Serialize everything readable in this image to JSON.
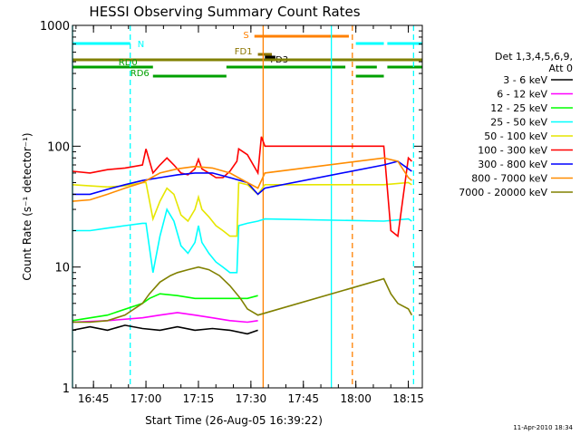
{
  "chart_data": {
    "type": "line",
    "title": "HESSI Observing Summary Count Rates",
    "xlabel": "Start Time (26-Aug-05 16:39:22)",
    "ylabel": "Count Rate (s⁻¹ detector⁻¹)",
    "yscale": "log",
    "ylim": [
      1,
      1000
    ],
    "xlim_minutes_after_1639": [
      0,
      100
    ],
    "y_ticks": [
      {
        "value": 1,
        "label": "1"
      },
      {
        "value": 10,
        "label": "10"
      },
      {
        "value": 100,
        "label": "100"
      },
      {
        "value": 1000,
        "label": "1000"
      }
    ],
    "x_ticks": [
      {
        "t": 6,
        "label": "16:45"
      },
      {
        "t": 21,
        "label": "17:00"
      },
      {
        "t": 36,
        "label": "17:15"
      },
      {
        "t": 51,
        "label": "17:30"
      },
      {
        "t": 66,
        "label": "17:45"
      },
      {
        "t": 81,
        "label": "18:00"
      },
      {
        "t": 96,
        "label": "18:15"
      }
    ],
    "legend_header": [
      "Det 1,3,4,5,6,9,",
      "Att 0"
    ],
    "legend_placement": "right",
    "series": [
      {
        "name": "3 - 6 keV",
        "color": "#000000",
        "points": [
          [
            0,
            3
          ],
          [
            5,
            3.2
          ],
          [
            10,
            3
          ],
          [
            15,
            3.3
          ],
          [
            20,
            3.1
          ],
          [
            25,
            3
          ],
          [
            30,
            3.2
          ],
          [
            35,
            3
          ],
          [
            40,
            3.1
          ],
          [
            45,
            3
          ],
          [
            50,
            2.8
          ],
          [
            53,
            3
          ]
        ]
      },
      {
        "name": "6 - 12 keV",
        "color": "#ff00ff",
        "points": [
          [
            0,
            3.5
          ],
          [
            10,
            3.6
          ],
          [
            20,
            3.8
          ],
          [
            25,
            4
          ],
          [
            30,
            4.2
          ],
          [
            35,
            4
          ],
          [
            40,
            3.8
          ],
          [
            45,
            3.6
          ],
          [
            50,
            3.5
          ],
          [
            53,
            3.6
          ]
        ]
      },
      {
        "name": "12 - 25 keV",
        "color": "#00ff00",
        "points": [
          [
            0,
            3.6
          ],
          [
            10,
            4
          ],
          [
            20,
            5
          ],
          [
            22,
            5.5
          ],
          [
            25,
            6
          ],
          [
            30,
            5.8
          ],
          [
            35,
            5.5
          ],
          [
            40,
            5.5
          ],
          [
            45,
            5.5
          ],
          [
            50,
            5.5
          ],
          [
            53,
            5.8
          ]
        ]
      },
      {
        "name": "25 - 50 keV",
        "color": "#00ffff",
        "points": [
          [
            0,
            20
          ],
          [
            5,
            20
          ],
          [
            10,
            21
          ],
          [
            15,
            22
          ],
          [
            20,
            23
          ],
          [
            21,
            23
          ],
          [
            23,
            9
          ],
          [
            25,
            18
          ],
          [
            27,
            30
          ],
          [
            29,
            24
          ],
          [
            31,
            15
          ],
          [
            33,
            13
          ],
          [
            35,
            16
          ],
          [
            36,
            22
          ],
          [
            37,
            16
          ],
          [
            39,
            13
          ],
          [
            41,
            11
          ],
          [
            43,
            10
          ],
          [
            45,
            9
          ],
          [
            47,
            9
          ],
          [
            47.5,
            22
          ],
          [
            50,
            23
          ],
          [
            53,
            24
          ],
          [
            55,
            25
          ],
          [
            89,
            24
          ],
          [
            96,
            25
          ],
          [
            97,
            24
          ]
        ]
      },
      {
        "name": "50 - 100 keV",
        "color": "#e6e600",
        "points": [
          [
            0,
            48
          ],
          [
            5,
            47
          ],
          [
            10,
            46
          ],
          [
            15,
            47
          ],
          [
            20,
            50
          ],
          [
            21,
            50
          ],
          [
            23,
            25
          ],
          [
            25,
            35
          ],
          [
            27,
            45
          ],
          [
            29,
            40
          ],
          [
            31,
            27
          ],
          [
            33,
            24
          ],
          [
            35,
            30
          ],
          [
            36,
            38
          ],
          [
            37,
            30
          ],
          [
            39,
            26
          ],
          [
            41,
            22
          ],
          [
            43,
            20
          ],
          [
            45,
            18
          ],
          [
            47,
            18
          ],
          [
            47.5,
            50
          ],
          [
            50,
            48
          ],
          [
            53,
            40
          ],
          [
            55,
            48
          ],
          [
            89,
            48
          ],
          [
            96,
            50
          ],
          [
            97,
            48
          ]
        ]
      },
      {
        "name": "100 - 300 keV",
        "color": "#ff0000",
        "points": [
          [
            0,
            62
          ],
          [
            5,
            60
          ],
          [
            10,
            64
          ],
          [
            15,
            66
          ],
          [
            20,
            70
          ],
          [
            21,
            95
          ],
          [
            23,
            60
          ],
          [
            25,
            70
          ],
          [
            27,
            80
          ],
          [
            29,
            70
          ],
          [
            31,
            60
          ],
          [
            33,
            58
          ],
          [
            35,
            65
          ],
          [
            36,
            78
          ],
          [
            37,
            65
          ],
          [
            39,
            60
          ],
          [
            41,
            55
          ],
          [
            43,
            55
          ],
          [
            45,
            62
          ],
          [
            47,
            75
          ],
          [
            47.5,
            95
          ],
          [
            50,
            85
          ],
          [
            53,
            60
          ],
          [
            54,
            120
          ],
          [
            55,
            100
          ],
          [
            89,
            100
          ],
          [
            91,
            20
          ],
          [
            93,
            18
          ],
          [
            96,
            80
          ],
          [
            97,
            75
          ]
        ]
      },
      {
        "name": "300 - 800 keV",
        "color": "#0000ff",
        "points": [
          [
            0,
            40
          ],
          [
            5,
            40
          ],
          [
            10,
            44
          ],
          [
            15,
            48
          ],
          [
            20,
            52
          ],
          [
            25,
            55
          ],
          [
            30,
            58
          ],
          [
            35,
            60
          ],
          [
            40,
            60
          ],
          [
            45,
            55
          ],
          [
            50,
            50
          ],
          [
            53,
            40
          ],
          [
            55,
            45
          ],
          [
            89,
            70
          ],
          [
            93,
            75
          ],
          [
            96,
            65
          ],
          [
            97,
            62
          ]
        ]
      },
      {
        "name": "800 - 7000 keV",
        "color": "#ff8c00",
        "points": [
          [
            0,
            35
          ],
          [
            5,
            36
          ],
          [
            10,
            40
          ],
          [
            15,
            45
          ],
          [
            20,
            50
          ],
          [
            25,
            60
          ],
          [
            30,
            65
          ],
          [
            35,
            68
          ],
          [
            40,
            66
          ],
          [
            45,
            60
          ],
          [
            50,
            50
          ],
          [
            53,
            45
          ],
          [
            55,
            60
          ],
          [
            89,
            80
          ],
          [
            93,
            75
          ],
          [
            96,
            55
          ],
          [
            97,
            52
          ]
        ]
      },
      {
        "name": "7000 - 20000 keV",
        "color": "#808000",
        "points": [
          [
            0,
            3.5
          ],
          [
            5,
            3.5
          ],
          [
            10,
            3.6
          ],
          [
            15,
            4
          ],
          [
            20,
            5
          ],
          [
            22,
            6
          ],
          [
            25,
            7.5
          ],
          [
            28,
            8.5
          ],
          [
            30,
            9
          ],
          [
            33,
            9.5
          ],
          [
            36,
            10
          ],
          [
            39,
            9.5
          ],
          [
            42,
            8.5
          ],
          [
            45,
            7
          ],
          [
            48,
            5.5
          ],
          [
            50,
            4.5
          ],
          [
            53,
            4
          ],
          [
            89,
            8
          ],
          [
            91,
            6
          ],
          [
            93,
            5
          ],
          [
            96,
            4.5
          ],
          [
            97,
            4
          ]
        ]
      }
    ],
    "flag_bars": [
      {
        "label": "N",
        "color": "#00ffff",
        "segments": [
          [
            0,
            16.5
          ],
          [
            81,
            89
          ],
          [
            90,
            100
          ]
        ]
      },
      {
        "label": "S",
        "color": "#ff8000",
        "segments": [
          [
            52,
            79
          ]
        ]
      },
      {
        "label": "FD1",
        "color": "#8b7500",
        "segments": [
          [
            53,
            57
          ]
        ]
      },
      {
        "label": "FD3",
        "color": "#000000",
        "segments": [
          [
            55,
            58
          ]
        ]
      },
      {
        "label": "",
        "color": "#808000",
        "segments": [
          [
            0,
            100
          ]
        ]
      },
      {
        "label": "RD0",
        "color": "#00a000",
        "segments": [
          [
            0,
            23
          ],
          [
            44,
            78
          ],
          [
            81,
            87
          ],
          [
            90,
            100
          ]
        ]
      },
      {
        "label": "RD6",
        "color": "#00a000",
        "segments": [
          [
            23,
            44
          ],
          [
            81,
            89
          ]
        ]
      }
    ],
    "vertical_markers": [
      {
        "t": 0,
        "color": "#00ffff",
        "dashed": false
      },
      {
        "t": 16.5,
        "color": "#00ffff",
        "dashed": true
      },
      {
        "t": 54.5,
        "color": "#ff8000",
        "dashed": false
      },
      {
        "t": 74,
        "color": "#00ffff",
        "dashed": false
      },
      {
        "t": 80,
        "color": "#ff8000",
        "dashed": true
      },
      {
        "t": 97.5,
        "color": "#00ffff",
        "dashed": true
      }
    ],
    "footer_date": "11-Apr-2010 18:34",
    "grid": false
  }
}
